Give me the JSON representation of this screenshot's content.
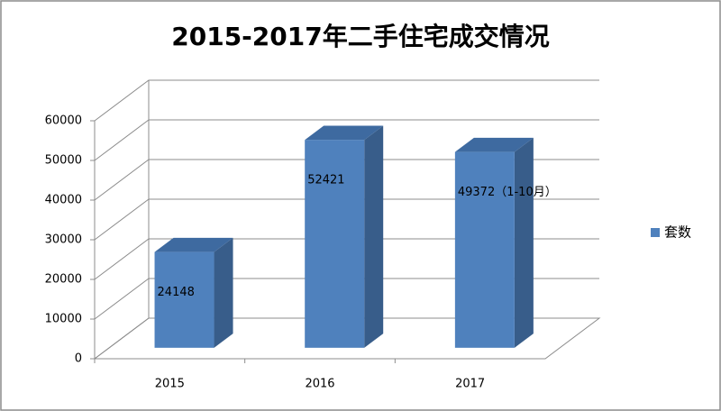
{
  "chart_data": {
    "type": "bar3d",
    "title": "2015-2017年二手住宅成交情况",
    "categories": [
      "2015",
      "2016",
      "2017"
    ],
    "series": [
      {
        "name": "套数",
        "color": "#4f81bd",
        "values": [
          24148,
          52421,
          49372
        ],
        "value_labels": [
          "24148",
          "52421",
          "49372（1-10月）"
        ]
      }
    ],
    "ylim": [
      0,
      60000
    ],
    "yticks": [
      0,
      10000,
      20000,
      30000,
      40000,
      50000,
      60000
    ],
    "grid": true,
    "legend": "right"
  }
}
